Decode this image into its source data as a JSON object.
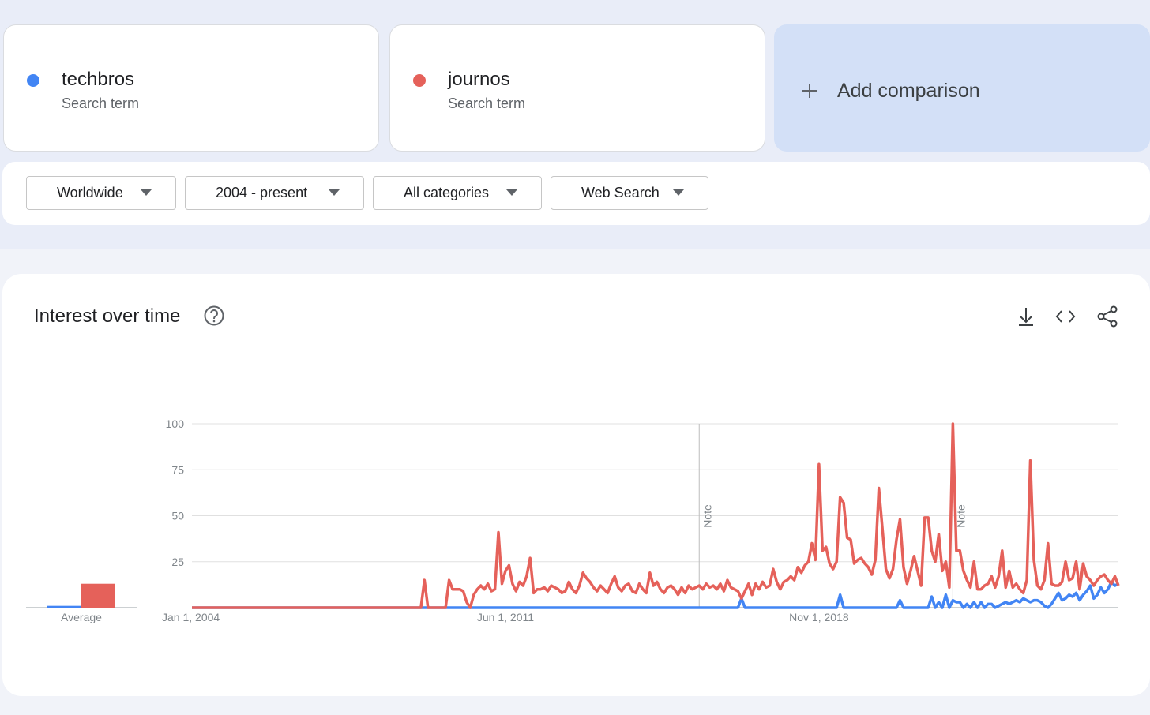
{
  "search_terms": [
    {
      "subtitle": "Search term"
    },
    {
      "subtitle": "Search term"
    }
  ],
  "add_comparison": "Add comparison",
  "filters": [
    "Worldwide",
    "2004 - present",
    "All categories",
    "Web Search"
  ],
  "panel_title": "Interest over time",
  "chart_data": {
    "type": "line",
    "categories": [
      "Jan 1, 2004",
      null,
      null,
      null,
      null,
      null,
      null,
      null,
      null,
      null,
      null,
      null,
      null,
      null,
      null,
      null,
      null,
      null,
      null,
      null,
      null,
      null,
      null,
      null,
      null,
      null,
      null,
      null,
      null,
      null,
      null,
      null,
      null,
      null,
      null,
      null,
      null,
      null,
      null,
      null,
      null,
      null,
      null,
      null,
      null,
      null,
      null,
      null,
      null,
      null,
      null,
      null,
      null,
      null,
      null,
      null,
      null,
      null,
      null,
      null,
      null,
      null,
      null,
      null,
      null,
      null,
      null,
      null,
      null,
      null,
      null,
      null,
      null,
      null,
      null,
      null,
      null,
      null,
      null,
      null,
      null,
      null,
      null,
      null,
      null,
      null,
      null,
      null,
      null,
      "Jun 1, 2011",
      null,
      null,
      null,
      null,
      null,
      null,
      null,
      null,
      null,
      null,
      null,
      null,
      null,
      null,
      null,
      null,
      null,
      null,
      null,
      null,
      null,
      null,
      null,
      null,
      null,
      null,
      null,
      null,
      null,
      null,
      null,
      null,
      null,
      null,
      null,
      null,
      null,
      null,
      null,
      null,
      null,
      null,
      null,
      null,
      null,
      null,
      null,
      null,
      null,
      null,
      null,
      null,
      null,
      null,
      null,
      null,
      null,
      null,
      null,
      null,
      null,
      null,
      null,
      null,
      null,
      null,
      null,
      null,
      null,
      null,
      null,
      null,
      null,
      null,
      null,
      null,
      null,
      null,
      null,
      null,
      null,
      null,
      null,
      null,
      null,
      null,
      null,
      null,
      "Nov 1, 2018",
      null,
      null,
      null,
      null,
      null,
      null,
      null,
      null,
      null,
      null,
      null,
      null,
      null,
      null,
      null,
      null,
      null,
      null,
      null,
      null,
      null,
      null,
      null,
      null,
      null,
      null,
      null,
      null,
      null,
      null,
      null,
      null,
      null,
      null,
      null,
      null,
      null,
      null,
      null,
      null,
      null,
      null,
      null,
      null,
      null,
      null,
      null,
      null,
      null,
      null,
      null,
      null,
      null,
      null,
      null,
      null,
      null,
      null,
      null,
      null,
      null,
      null,
      null,
      null,
      null,
      null,
      null,
      null,
      null,
      null,
      null,
      null,
      null,
      null,
      null,
      null,
      null,
      null,
      null,
      null,
      null,
      null,
      null,
      null,
      null
    ],
    "series": [
      {
        "name": "techbros",
        "color": "#4285f4",
        "values": [
          0,
          0,
          0,
          0,
          0,
          0,
          0,
          0,
          0,
          0,
          0,
          0,
          0,
          0,
          0,
          0,
          0,
          0,
          0,
          0,
          0,
          0,
          0,
          0,
          0,
          0,
          0,
          0,
          0,
          0,
          0,
          0,
          0,
          0,
          0,
          0,
          0,
          0,
          0,
          0,
          0,
          0,
          0,
          0,
          0,
          0,
          0,
          0,
          0,
          0,
          0,
          0,
          0,
          0,
          0,
          0,
          0,
          0,
          0,
          0,
          0,
          0,
          0,
          0,
          0,
          0,
          0,
          0,
          0,
          0,
          0,
          0,
          0,
          0,
          0,
          0,
          0,
          0,
          0,
          0,
          0,
          0,
          0,
          0,
          0,
          0,
          0,
          0,
          0,
          0,
          0,
          0,
          0,
          0,
          0,
          0,
          0,
          0,
          0,
          0,
          0,
          0,
          0,
          0,
          0,
          0,
          0,
          0,
          0,
          0,
          0,
          0,
          0,
          0,
          0,
          0,
          0,
          0,
          0,
          0,
          0,
          0,
          0,
          0,
          0,
          0,
          0,
          0,
          0,
          0,
          0,
          0,
          0,
          0,
          0,
          0,
          0,
          0,
          0,
          0,
          0,
          0,
          0,
          0,
          0,
          0,
          0,
          0,
          0,
          0,
          0,
          0,
          0,
          0,
          0,
          0,
          5,
          0,
          0,
          0,
          0,
          0,
          0,
          0,
          0,
          0,
          0,
          0,
          0,
          0,
          0,
          0,
          0,
          0,
          0,
          0,
          0,
          0,
          0,
          0,
          0,
          0,
          0,
          0,
          7,
          0,
          0,
          0,
          0,
          0,
          0,
          0,
          0,
          0,
          0,
          0,
          0,
          0,
          0,
          0,
          0,
          4,
          0,
          0,
          0,
          0,
          0,
          0,
          0,
          0,
          6,
          0,
          3,
          0,
          7,
          0,
          4,
          3,
          3,
          0,
          2,
          0,
          3,
          0,
          3,
          0,
          2,
          2,
          0,
          1,
          2,
          3,
          2,
          3,
          4,
          3,
          5,
          4,
          3,
          4,
          4,
          3,
          1,
          0,
          2,
          5,
          8,
          4,
          5,
          7,
          6,
          8,
          4,
          7,
          9,
          12,
          5,
          7,
          11,
          8,
          10,
          14,
          12,
          13
        ]
      },
      {
        "name": "journos",
        "color": "#e5615a",
        "values": [
          0,
          0,
          0,
          0,
          0,
          0,
          0,
          0,
          0,
          0,
          0,
          0,
          0,
          0,
          0,
          0,
          0,
          0,
          0,
          0,
          0,
          0,
          0,
          0,
          0,
          0,
          0,
          0,
          0,
          0,
          0,
          0,
          0,
          0,
          0,
          0,
          0,
          0,
          0,
          0,
          0,
          0,
          0,
          0,
          0,
          0,
          0,
          0,
          0,
          0,
          0,
          0,
          0,
          0,
          0,
          0,
          0,
          0,
          0,
          0,
          0,
          0,
          0,
          0,
          0,
          0,
          15,
          0,
          0,
          0,
          0,
          0,
          0,
          15,
          10,
          10,
          10,
          9,
          3,
          0,
          7,
          10,
          12,
          10,
          13,
          9,
          10,
          41,
          13,
          20,
          23,
          13,
          9,
          14,
          12,
          17,
          27,
          8,
          10,
          10,
          11,
          9,
          12,
          11,
          10,
          8,
          9,
          14,
          10,
          8,
          12,
          19,
          16,
          14,
          11,
          9,
          12,
          10,
          8,
          13,
          17,
          11,
          9,
          12,
          13,
          9,
          8,
          13,
          10,
          8,
          19,
          12,
          14,
          10,
          8,
          11,
          12,
          10,
          7,
          11,
          8,
          12,
          10,
          11,
          12,
          10,
          13,
          11,
          12,
          10,
          13,
          9,
          15,
          11,
          10,
          9,
          5,
          9,
          13,
          7,
          13,
          10,
          14,
          11,
          12,
          21,
          14,
          10,
          14,
          15,
          17,
          15,
          22,
          19,
          23,
          25,
          35,
          26,
          78,
          31,
          33,
          24,
          21,
          25,
          60,
          57,
          38,
          37,
          24,
          26,
          27,
          24,
          22,
          18,
          26,
          65,
          43,
          21,
          16,
          21,
          37,
          48,
          22,
          13,
          20,
          28,
          20,
          12,
          49,
          49,
          31,
          25,
          40,
          20,
          25,
          11,
          100,
          31,
          31,
          20,
          15,
          11,
          25,
          10,
          10,
          12,
          13,
          17,
          11,
          17,
          31,
          11,
          20,
          11,
          13,
          10,
          8,
          15,
          80,
          26,
          12,
          10,
          15,
          35,
          13,
          12,
          12,
          14,
          25,
          15,
          16,
          25,
          10,
          24,
          17,
          15,
          12,
          15,
          17,
          18,
          15,
          13,
          17,
          12
        ]
      }
    ],
    "ylim": [
      0,
      100
    ],
    "yticks": [
      25,
      50,
      75,
      100
    ],
    "grid": true,
    "average_label": "Average",
    "average_values": [
      1,
      13
    ],
    "annotations": [
      {
        "label": "Note",
        "category_index": 144
      },
      {
        "label": "Note",
        "category_index": 216
      }
    ]
  }
}
